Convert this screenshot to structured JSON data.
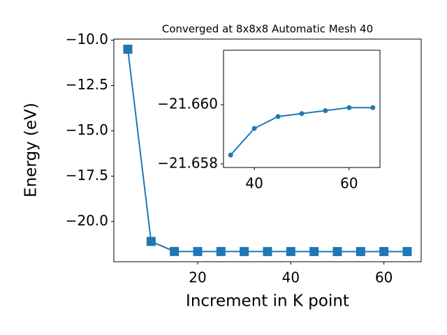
{
  "chart_data": [
    {
      "type": "line",
      "title": "Converged at 8x8x8 Automatic Mesh 40",
      "xlabel": "Increment in K point",
      "ylabel": "Energy (eV)",
      "x": [
        5,
        10,
        15,
        20,
        25,
        30,
        35,
        40,
        45,
        50,
        55,
        60,
        65
      ],
      "series": [
        {
          "color": "#1f77b4",
          "marker": "square",
          "values": [
            -10.5,
            -21.1,
            -21.655,
            -21.657,
            -21.6575,
            -21.658,
            -21.6583,
            -21.6592,
            -21.6596,
            -21.6597,
            -21.6598,
            -21.6599,
            -21.6599
          ]
        }
      ],
      "xlim": [
        2,
        68
      ],
      "ylim": [
        -22.22,
        -9.94
      ],
      "xticks": [
        20,
        40,
        60
      ],
      "yticks": [
        {
          "value": -20.0,
          "label": "−20.0"
        },
        {
          "value": -17.5,
          "label": "−17.5"
        },
        {
          "value": -15.0,
          "label": "−15.0"
        },
        {
          "value": -12.5,
          "label": "−12.5"
        },
        {
          "value": -10.0,
          "label": "−10.0"
        }
      ]
    },
    {
      "type": "line",
      "x": [
        35,
        40,
        45,
        50,
        55,
        60,
        65
      ],
      "series": [
        {
          "color": "#1f77b4",
          "marker": "circle",
          "values": [
            -21.6583,
            -21.6592,
            -21.6596,
            -21.6597,
            -21.6598,
            -21.6599,
            -21.6599
          ]
        }
      ],
      "xlim": [
        33.5,
        66.5
      ],
      "ylim": [
        -21.65788,
        -21.66184
      ],
      "xticks": [
        40,
        60
      ],
      "yticks": [
        {
          "value": -21.658,
          "label": "−21.658"
        },
        {
          "value": -21.66,
          "label": "−21.660"
        }
      ]
    }
  ]
}
